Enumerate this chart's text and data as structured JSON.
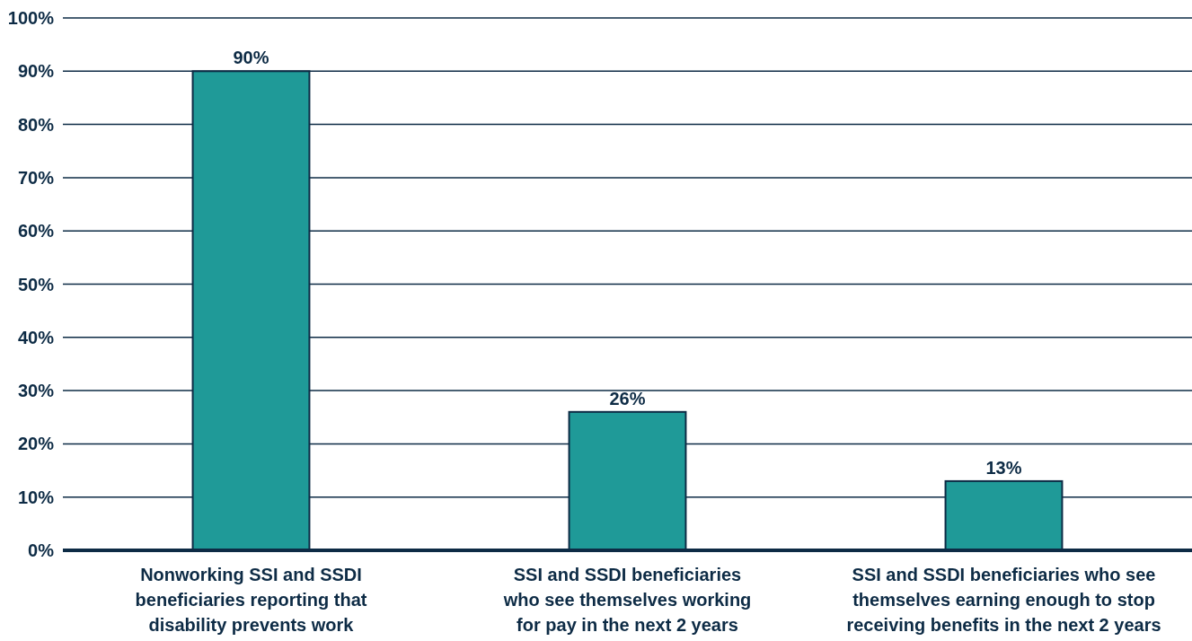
{
  "chart_data": {
    "type": "bar",
    "categories": [
      "Nonworking SSI and SSDI\nbeneficiaries reporting that\ndisability prevents work",
      "SSI and SSDI beneficiaries\nwho see themselves working\nfor pay in the next 2 years",
      "SSI and SSDI beneficiaries who see\nthemselves earning enough to stop\nreceiving benefits in the next 2 years"
    ],
    "values": [
      90,
      26,
      13
    ],
    "value_labels": [
      "90%",
      "26%",
      "13%"
    ],
    "color": "#1f9a98",
    "ylim": [
      0,
      100
    ],
    "yticks": [
      {
        "value": 0,
        "label": "0%"
      },
      {
        "value": 10,
        "label": "10%"
      },
      {
        "value": 20,
        "label": "20%"
      },
      {
        "value": 30,
        "label": "30%"
      },
      {
        "value": 40,
        "label": "40%"
      },
      {
        "value": 50,
        "label": "50%"
      },
      {
        "value": 60,
        "label": "60%"
      },
      {
        "value": 70,
        "label": "70%"
      },
      {
        "value": 80,
        "label": "80%"
      },
      {
        "value": 90,
        "label": "90%"
      },
      {
        "value": 100,
        "label": "100%"
      }
    ],
    "grid": "y"
  }
}
